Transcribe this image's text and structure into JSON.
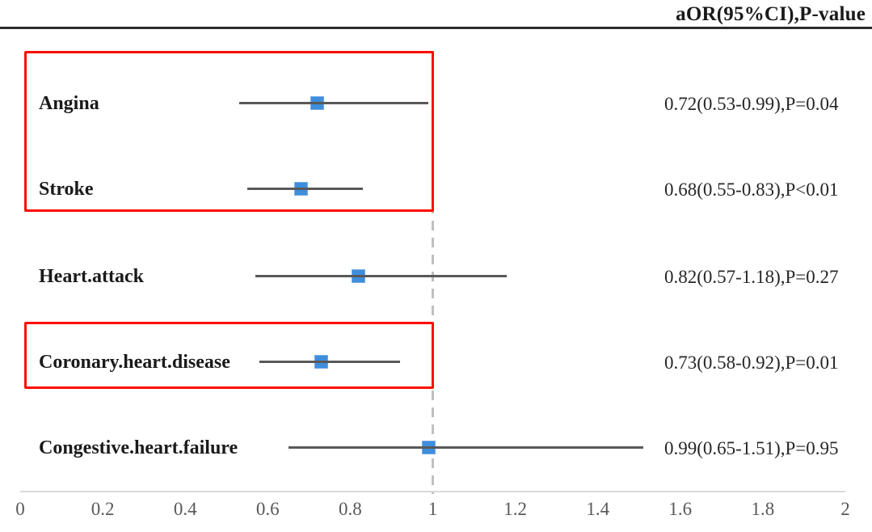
{
  "header": {
    "column_label": "aOR(95%CI),P-value"
  },
  "colors": {
    "marker_blue": "#3e8edd",
    "marker_border": "#77ace2",
    "ci_line_gray": "#595959",
    "ref_dash_gray": "#bfbfbf",
    "highlight_red": "#fe0d00",
    "axis_gray": "#d9d9d9",
    "tick_text_gray": "#595959",
    "text_black": "#1a1a1a",
    "header_rule": "#2b2b2b"
  },
  "chart_data": {
    "type": "forest",
    "title": "aOR(95%CI),P-value",
    "x_axis": {
      "min": 0,
      "max": 2,
      "ticks": [
        0,
        0.2,
        0.4,
        0.6,
        0.8,
        1,
        1.2,
        1.4,
        1.6,
        1.8,
        2
      ],
      "tick_labels": [
        "0",
        "0.2",
        "0.4",
        "0.6",
        "0.8",
        "1",
        "1.2",
        "1.4",
        "1.6",
        "1.8",
        "2"
      ],
      "reference_line": 1
    },
    "rows": [
      {
        "label": "Angina",
        "aor": 0.72,
        "ci_low": 0.53,
        "ci_high": 0.99,
        "display": "0.72(0.53-0.99),P=0.04",
        "highlighted": true
      },
      {
        "label": "Stroke",
        "aor": 0.68,
        "ci_low": 0.55,
        "ci_high": 0.83,
        "display": "0.68(0.55-0.83),P<0.01",
        "highlighted": true
      },
      {
        "label": "Heart.attack",
        "aor": 0.82,
        "ci_low": 0.57,
        "ci_high": 1.18,
        "display": "0.82(0.57-1.18),P=0.27",
        "highlighted": false
      },
      {
        "label": "Coronary.heart.disease",
        "aor": 0.73,
        "ci_low": 0.58,
        "ci_high": 0.92,
        "display": "0.73(0.58-0.92),P=0.01",
        "highlighted": true
      },
      {
        "label": "Congestive.heart.failure",
        "aor": 0.99,
        "ci_low": 0.65,
        "ci_high": 1.51,
        "display": "0.99(0.65-1.51),P=0.95",
        "highlighted": false
      }
    ],
    "highlight_boxes": [
      {
        "from_row": 0,
        "to_row": 1
      },
      {
        "from_row": 3,
        "to_row": 3
      }
    ],
    "legend": null,
    "grid": false
  }
}
